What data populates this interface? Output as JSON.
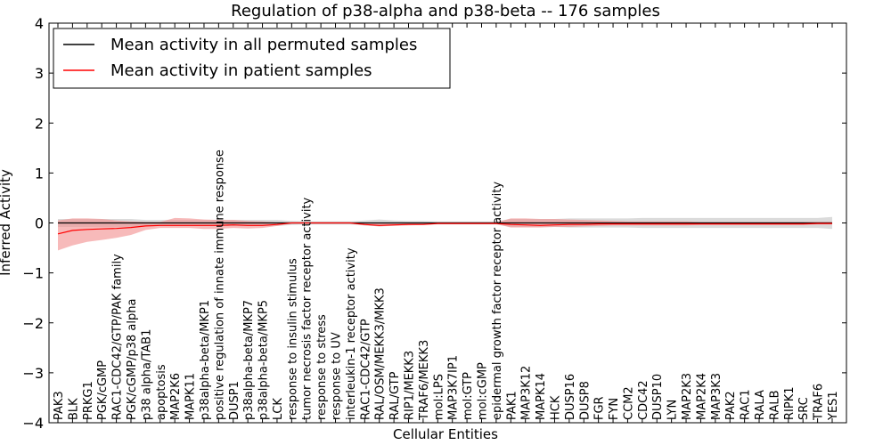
{
  "chart_data": {
    "type": "line",
    "title": "Regulation of p38-alpha and p38-beta -- 176 samples",
    "xlabel": "Cellular Entities",
    "ylabel": "Inferred Activity",
    "ylim": [
      -4,
      4
    ],
    "yticks": [
      -4,
      -3,
      -2,
      -1,
      0,
      1,
      2,
      3,
      4
    ],
    "grid": false,
    "legend_position": "top-left",
    "categories": [
      "PAK3",
      "BLK",
      "PRKG1",
      "PGK/cGMP",
      "RAC1-CDC42/GTP/PAK family",
      "PGK/cGMP/p38 alpha",
      "p38 alpha/TAB1",
      "apoptosis",
      "MAP2K6",
      "MAPK11",
      "p38alpha-beta/MKP1",
      "positive regulation of innate immune response",
      "DUSP1",
      "p38alpha-beta/MKP7",
      "p38alpha-beta/MKP5",
      "LCK",
      "response to insulin stimulus",
      "tumor necrosis factor receptor activity",
      "response to stress",
      "response to UV",
      "interleukin-1 receptor activity",
      "RAC1-CDC42/GTP",
      "RAL/OSM/MEKK3/MKK3",
      "RAL/GTP",
      "RIP1/MEKK3",
      "TRAF6/MEKK3",
      "mol:LPS",
      "MAP3K7IP1",
      "mol:GTP",
      "mol:cGMP",
      "epidermal growth factor receptor activity",
      "PAK1",
      "MAP3K12",
      "MAPK14",
      "HCK",
      "DUSP16",
      "DUSP8",
      "FGR",
      "FYN",
      "CCM2",
      "CDC42",
      "DUSP10",
      "LYN",
      "MAP2K3",
      "MAP2K4",
      "MAP3K3",
      "PAK2",
      "RAC1",
      "RALA",
      "RALB",
      "RIPK1",
      "SRC",
      "TRAF6",
      "YES1"
    ],
    "series": [
      {
        "name": "Mean activity in all permuted samples",
        "color": "#000000",
        "band_color": "#b0b0b0",
        "values": [
          0,
          0,
          0,
          0,
          0,
          0,
          0,
          0,
          0,
          0,
          0,
          0,
          0,
          0,
          0,
          0,
          0,
          0,
          0,
          0,
          0,
          0,
          0,
          0,
          0,
          0,
          0,
          0,
          0,
          0,
          0,
          0,
          0,
          0,
          0,
          0,
          0,
          0,
          0,
          0,
          0,
          0,
          0,
          0,
          0,
          0,
          0,
          0,
          0,
          0,
          0,
          0,
          0,
          0
        ],
        "lower": [
          -0.08,
          -0.08,
          -0.08,
          -0.08,
          -0.08,
          -0.08,
          -0.06,
          -0.06,
          -0.06,
          -0.06,
          -0.06,
          -0.06,
          -0.06,
          -0.06,
          -0.06,
          -0.06,
          -0.04,
          -0.03,
          -0.03,
          -0.03,
          -0.03,
          -0.05,
          -0.07,
          -0.05,
          -0.04,
          -0.04,
          -0.03,
          -0.03,
          -0.03,
          -0.03,
          -0.03,
          -0.08,
          -0.08,
          -0.08,
          -0.08,
          -0.09,
          -0.09,
          -0.09,
          -0.09,
          -0.09,
          -0.1,
          -0.1,
          -0.1,
          -0.1,
          -0.1,
          -0.1,
          -0.1,
          -0.1,
          -0.1,
          -0.1,
          -0.1,
          -0.1,
          -0.1,
          -0.12
        ],
        "upper": [
          0.08,
          0.08,
          0.08,
          0.08,
          0.08,
          0.08,
          0.06,
          0.06,
          0.06,
          0.06,
          0.06,
          0.06,
          0.06,
          0.06,
          0.06,
          0.06,
          0.04,
          0.03,
          0.03,
          0.03,
          0.03,
          0.05,
          0.07,
          0.05,
          0.04,
          0.04,
          0.03,
          0.03,
          0.03,
          0.03,
          0.03,
          0.08,
          0.08,
          0.08,
          0.08,
          0.09,
          0.09,
          0.09,
          0.09,
          0.09,
          0.1,
          0.1,
          0.1,
          0.1,
          0.1,
          0.1,
          0.1,
          0.1,
          0.1,
          0.1,
          0.1,
          0.1,
          0.1,
          0.12
        ]
      },
      {
        "name": "Mean activity in patient samples",
        "color": "#ff0000",
        "band_color": "#f28c8c",
        "values": [
          -0.22,
          -0.15,
          -0.13,
          -0.12,
          -0.11,
          -0.09,
          -0.06,
          -0.05,
          -0.05,
          -0.05,
          -0.05,
          -0.05,
          -0.04,
          -0.05,
          -0.05,
          -0.03,
          0,
          0,
          0,
          0,
          0,
          -0.03,
          -0.05,
          -0.04,
          -0.03,
          -0.03,
          -0.01,
          -0.01,
          -0.01,
          -0.01,
          -0.01,
          -0.03,
          -0.04,
          -0.05,
          -0.04,
          -0.03,
          -0.03,
          -0.02,
          -0.02,
          -0.02,
          -0.02,
          -0.02,
          -0.02,
          -0.02,
          -0.02,
          -0.02,
          -0.02,
          -0.02,
          -0.02,
          -0.02,
          -0.02,
          -0.02,
          -0.01,
          -0.01
        ],
        "lower": [
          -0.55,
          -0.45,
          -0.38,
          -0.34,
          -0.3,
          -0.24,
          -0.14,
          -0.1,
          -0.1,
          -0.1,
          -0.12,
          -0.12,
          -0.1,
          -0.11,
          -0.1,
          -0.06,
          -0.01,
          -0.01,
          -0.01,
          -0.01,
          -0.01,
          -0.05,
          -0.07,
          -0.06,
          -0.05,
          -0.04,
          -0.02,
          -0.02,
          -0.02,
          -0.02,
          -0.02,
          -0.09,
          -0.09,
          -0.09,
          -0.08,
          -0.08,
          -0.07,
          -0.06,
          -0.05,
          -0.05,
          -0.05,
          -0.05,
          -0.05,
          -0.05,
          -0.04,
          -0.04,
          -0.04,
          -0.04,
          -0.04,
          -0.04,
          -0.04,
          -0.04,
          -0.03,
          -0.03
        ],
        "upper": [
          0.05,
          0.09,
          0.09,
          0.08,
          0.05,
          0.03,
          0.02,
          0.02,
          0.1,
          0.09,
          0.07,
          0.06,
          0.06,
          0.04,
          0.03,
          0.01,
          0.01,
          0.01,
          0.01,
          0.01,
          0.01,
          0.0,
          0.0,
          0.0,
          0.0,
          0.0,
          0.01,
          0.01,
          0.01,
          0.01,
          0.01,
          0.09,
          0.09,
          0.08,
          0.08,
          0.07,
          0.06,
          0.05,
          0.04,
          0.03,
          0.03,
          0.03,
          0.03,
          0.03,
          0.02,
          0.02,
          0.02,
          0.02,
          0.02,
          0.02,
          0.02,
          0.02,
          0.02,
          0.02
        ]
      }
    ]
  }
}
